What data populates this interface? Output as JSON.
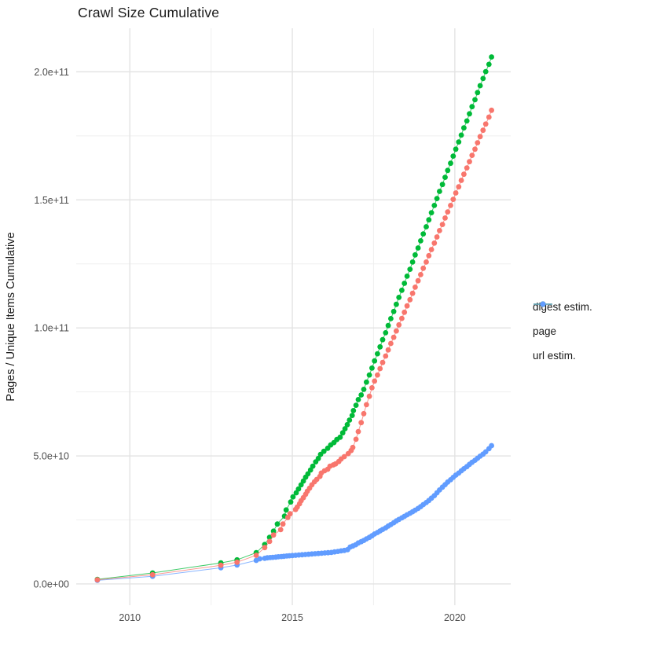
{
  "chart": {
    "title": "Crawl Size Cumulative",
    "y_axis_label": "Pages / Unique Items Cumulative"
  },
  "chart_data": {
    "type": "line",
    "title": "Crawl Size Cumulative",
    "xlabel": "",
    "ylabel": "Pages / Unique Items Cumulative",
    "grid": true,
    "legend_position": "right",
    "x_axis": {
      "range": [
        2008.35,
        2021.72
      ],
      "ticks": [
        2010,
        2015,
        2020
      ],
      "tick_labels": [
        "2010",
        "2015",
        "2020"
      ],
      "minor_ticks": [
        2012.5,
        2017.5
      ]
    },
    "y_axis": {
      "unit_note": "values stored in billions; axis shown in scientific notation",
      "value_scale": 1000000000.0,
      "range_billions": [
        -8.3,
        217
      ],
      "ticks_billions": [
        0,
        50,
        100,
        150,
        200
      ],
      "tick_labels": [
        "0.0e+00",
        "5.0e+10",
        "1.0e+11",
        "1.5e+11",
        "2.0e+11"
      ],
      "minor_ticks_billions": [
        25,
        75,
        125,
        175
      ]
    },
    "draw_order": [
      "url estim.",
      "page",
      "digest estim."
    ],
    "series": [
      {
        "name": "digest estim.",
        "key": "digest-estim",
        "color": "#F8766D",
        "points_year_billions": [
          [
            2009.0,
            1.6
          ],
          [
            2010.7,
            3.6
          ],
          [
            2012.8,
            7.3
          ],
          [
            2013.3,
            8.5
          ],
          [
            2013.89,
            11.2
          ],
          [
            2014.15,
            14.2
          ],
          [
            2014.3,
            16.6
          ],
          [
            2014.42,
            19.1
          ],
          [
            2014.64,
            21.2
          ],
          [
            2014.71,
            23.4
          ],
          [
            2014.86,
            26.0
          ],
          [
            2014.93,
            27.4
          ],
          [
            2015.1,
            29.1
          ],
          [
            2015.15,
            30.0
          ],
          [
            2015.22,
            31.3
          ],
          [
            2015.27,
            32.5
          ],
          [
            2015.34,
            33.7
          ],
          [
            2015.41,
            35.0
          ],
          [
            2015.46,
            36.2
          ],
          [
            2015.53,
            37.4
          ],
          [
            2015.6,
            38.7
          ],
          [
            2015.68,
            39.9
          ],
          [
            2015.75,
            40.8
          ],
          [
            2015.85,
            42.0
          ],
          [
            2015.89,
            43.3
          ],
          [
            2015.99,
            44.2
          ],
          [
            2016.09,
            44.8
          ],
          [
            2016.16,
            46.0
          ],
          [
            2016.26,
            46.5
          ],
          [
            2016.33,
            46.9
          ],
          [
            2016.43,
            47.8
          ],
          [
            2016.5,
            48.8
          ],
          [
            2016.6,
            49.7
          ],
          [
            2016.72,
            50.9
          ],
          [
            2016.81,
            52.1
          ],
          [
            2016.86,
            53.3
          ],
          [
            2016.96,
            56.5
          ],
          [
            2017.03,
            59.5
          ],
          [
            2017.12,
            63.0
          ],
          [
            2017.2,
            66.5
          ],
          [
            2017.28,
            70.0
          ],
          [
            2017.37,
            73.3
          ],
          [
            2017.45,
            76.6
          ],
          [
            2017.53,
            79.2
          ],
          [
            2017.62,
            81.6
          ],
          [
            2017.7,
            84.1
          ],
          [
            2017.78,
            86.5
          ],
          [
            2017.87,
            89.0
          ],
          [
            2017.95,
            91.4
          ],
          [
            2018.03,
            93.9
          ],
          [
            2018.12,
            96.3
          ],
          [
            2018.2,
            98.8
          ],
          [
            2018.28,
            101.2
          ],
          [
            2018.37,
            103.7
          ],
          [
            2018.45,
            106.1
          ],
          [
            2018.53,
            108.6
          ],
          [
            2018.62,
            111.0
          ],
          [
            2018.7,
            113.5
          ],
          [
            2018.78,
            115.9
          ],
          [
            2018.87,
            118.4
          ],
          [
            2018.95,
            120.8
          ],
          [
            2019.03,
            123.3
          ],
          [
            2019.12,
            125.7
          ],
          [
            2019.2,
            128.2
          ],
          [
            2019.28,
            130.6
          ],
          [
            2019.37,
            133.1
          ],
          [
            2019.45,
            135.5
          ],
          [
            2019.53,
            138.0
          ],
          [
            2019.62,
            140.4
          ],
          [
            2019.7,
            142.9
          ],
          [
            2019.78,
            145.3
          ],
          [
            2019.87,
            147.8
          ],
          [
            2019.95,
            150.2
          ],
          [
            2020.03,
            152.7
          ],
          [
            2020.12,
            155.1
          ],
          [
            2020.2,
            157.6
          ],
          [
            2020.28,
            160.0
          ],
          [
            2020.37,
            162.5
          ],
          [
            2020.45,
            164.9
          ],
          [
            2020.53,
            167.4
          ],
          [
            2020.62,
            169.8
          ],
          [
            2020.7,
            172.3
          ],
          [
            2020.78,
            174.7
          ],
          [
            2020.87,
            177.2
          ],
          [
            2020.95,
            179.6
          ],
          [
            2021.05,
            182.3
          ],
          [
            2021.13,
            185.0
          ]
        ]
      },
      {
        "name": "page",
        "key": "page",
        "color": "#00BA38",
        "points_year_billions": [
          [
            2009.0,
            1.8
          ],
          [
            2010.7,
            4.3
          ],
          [
            2012.8,
            8.2
          ],
          [
            2013.3,
            9.4
          ],
          [
            2013.89,
            12.2
          ],
          [
            2014.15,
            15.4
          ],
          [
            2014.3,
            18.2
          ],
          [
            2014.42,
            20.6
          ],
          [
            2014.54,
            23.4
          ],
          [
            2014.76,
            26.5
          ],
          [
            2014.81,
            28.9
          ],
          [
            2014.95,
            32.0
          ],
          [
            2015.02,
            34.0
          ],
          [
            2015.12,
            35.6
          ],
          [
            2015.19,
            37.1
          ],
          [
            2015.27,
            38.7
          ],
          [
            2015.34,
            40.2
          ],
          [
            2015.41,
            41.7
          ],
          [
            2015.48,
            43.0
          ],
          [
            2015.56,
            44.5
          ],
          [
            2015.63,
            46.0
          ],
          [
            2015.72,
            47.7
          ],
          [
            2015.8,
            49.0
          ],
          [
            2015.87,
            50.6
          ],
          [
            2015.97,
            51.8
          ],
          [
            2016.09,
            53.0
          ],
          [
            2016.18,
            54.3
          ],
          [
            2016.28,
            55.2
          ],
          [
            2016.37,
            56.4
          ],
          [
            2016.47,
            57.3
          ],
          [
            2016.55,
            59.0
          ],
          [
            2016.62,
            60.6
          ],
          [
            2016.69,
            62.2
          ],
          [
            2016.76,
            64.0
          ],
          [
            2016.84,
            65.8
          ],
          [
            2016.88,
            67.7
          ],
          [
            2016.96,
            69.8
          ],
          [
            2017.03,
            72.0
          ],
          [
            2017.12,
            73.8
          ],
          [
            2017.2,
            76.0
          ],
          [
            2017.28,
            78.8
          ],
          [
            2017.37,
            81.6
          ],
          [
            2017.45,
            84.3
          ],
          [
            2017.53,
            87.1
          ],
          [
            2017.62,
            89.9
          ],
          [
            2017.7,
            92.6
          ],
          [
            2017.78,
            95.4
          ],
          [
            2017.87,
            98.1
          ],
          [
            2017.95,
            100.9
          ],
          [
            2018.03,
            103.6
          ],
          [
            2018.12,
            106.4
          ],
          [
            2018.2,
            109.2
          ],
          [
            2018.28,
            111.9
          ],
          [
            2018.37,
            114.7
          ],
          [
            2018.45,
            117.4
          ],
          [
            2018.53,
            120.2
          ],
          [
            2018.62,
            122.9
          ],
          [
            2018.7,
            125.7
          ],
          [
            2018.78,
            128.5
          ],
          [
            2018.87,
            131.2
          ],
          [
            2018.95,
            134.0
          ],
          [
            2019.03,
            136.7
          ],
          [
            2019.12,
            139.5
          ],
          [
            2019.2,
            142.2
          ],
          [
            2019.28,
            145.0
          ],
          [
            2019.37,
            147.8
          ],
          [
            2019.45,
            150.5
          ],
          [
            2019.53,
            153.3
          ],
          [
            2019.62,
            156.0
          ],
          [
            2019.7,
            158.8
          ],
          [
            2019.78,
            161.5
          ],
          [
            2019.87,
            164.3
          ],
          [
            2019.95,
            167.1
          ],
          [
            2020.03,
            169.8
          ],
          [
            2020.12,
            172.6
          ],
          [
            2020.2,
            175.3
          ],
          [
            2020.28,
            178.1
          ],
          [
            2020.37,
            180.8
          ],
          [
            2020.45,
            183.6
          ],
          [
            2020.53,
            186.4
          ],
          [
            2020.62,
            189.1
          ],
          [
            2020.7,
            191.9
          ],
          [
            2020.78,
            194.6
          ],
          [
            2020.87,
            197.4
          ],
          [
            2020.95,
            200.1
          ],
          [
            2021.05,
            202.9
          ],
          [
            2021.13,
            205.8
          ]
        ]
      },
      {
        "name": "url estim.",
        "key": "url-estim",
        "color": "#619CFF",
        "points_year_billions": [
          [
            2009.0,
            1.4
          ],
          [
            2010.7,
            3.0
          ],
          [
            2012.8,
            6.3
          ],
          [
            2013.3,
            7.4
          ],
          [
            2013.89,
            9.2
          ],
          [
            2014.0,
            9.8
          ],
          [
            2014.15,
            10.0
          ],
          [
            2014.23,
            10.2
          ],
          [
            2014.32,
            10.3
          ],
          [
            2014.4,
            10.4
          ],
          [
            2014.49,
            10.5
          ],
          [
            2014.57,
            10.6
          ],
          [
            2014.66,
            10.7
          ],
          [
            2014.74,
            10.8
          ],
          [
            2014.83,
            10.9
          ],
          [
            2014.91,
            11.0
          ],
          [
            2015.0,
            11.1
          ],
          [
            2015.1,
            11.2
          ],
          [
            2015.2,
            11.3
          ],
          [
            2015.3,
            11.4
          ],
          [
            2015.4,
            11.5
          ],
          [
            2015.5,
            11.6
          ],
          [
            2015.6,
            11.7
          ],
          [
            2015.7,
            11.8
          ],
          [
            2015.8,
            11.9
          ],
          [
            2015.9,
            12.0
          ],
          [
            2016.0,
            12.1
          ],
          [
            2016.1,
            12.2
          ],
          [
            2016.2,
            12.3
          ],
          [
            2016.3,
            12.5
          ],
          [
            2016.4,
            12.7
          ],
          [
            2016.5,
            12.9
          ],
          [
            2016.6,
            13.1
          ],
          [
            2016.7,
            13.4
          ],
          [
            2016.78,
            14.4
          ],
          [
            2016.86,
            14.8
          ],
          [
            2016.95,
            15.3
          ],
          [
            2017.03,
            16.0
          ],
          [
            2017.12,
            16.5
          ],
          [
            2017.2,
            17.0
          ],
          [
            2017.28,
            17.6
          ],
          [
            2017.37,
            18.2
          ],
          [
            2017.45,
            18.8
          ],
          [
            2017.53,
            19.5
          ],
          [
            2017.62,
            20.1
          ],
          [
            2017.7,
            20.7
          ],
          [
            2017.78,
            21.3
          ],
          [
            2017.87,
            21.9
          ],
          [
            2017.95,
            22.6
          ],
          [
            2018.03,
            23.2
          ],
          [
            2018.12,
            23.9
          ],
          [
            2018.2,
            24.6
          ],
          [
            2018.28,
            25.2
          ],
          [
            2018.37,
            25.8
          ],
          [
            2018.45,
            26.4
          ],
          [
            2018.53,
            27.0
          ],
          [
            2018.62,
            27.6
          ],
          [
            2018.7,
            28.2
          ],
          [
            2018.78,
            28.8
          ],
          [
            2018.87,
            29.5
          ],
          [
            2018.95,
            30.2
          ],
          [
            2019.03,
            31.0
          ],
          [
            2019.12,
            31.8
          ],
          [
            2019.2,
            32.6
          ],
          [
            2019.28,
            33.5
          ],
          [
            2019.37,
            34.5
          ],
          [
            2019.45,
            35.6
          ],
          [
            2019.53,
            36.7
          ],
          [
            2019.62,
            37.8
          ],
          [
            2019.7,
            38.8
          ],
          [
            2019.78,
            39.8
          ],
          [
            2019.87,
            40.7
          ],
          [
            2019.95,
            41.6
          ],
          [
            2020.03,
            42.5
          ],
          [
            2020.12,
            43.3
          ],
          [
            2020.2,
            44.2
          ],
          [
            2020.28,
            45.0
          ],
          [
            2020.37,
            45.8
          ],
          [
            2020.45,
            46.7
          ],
          [
            2020.53,
            47.5
          ],
          [
            2020.62,
            48.3
          ],
          [
            2020.7,
            49.1
          ],
          [
            2020.78,
            49.9
          ],
          [
            2020.87,
            50.7
          ],
          [
            2020.95,
            51.6
          ],
          [
            2021.05,
            52.8
          ],
          [
            2021.13,
            54.0
          ]
        ]
      }
    ],
    "style": {
      "background": "#FFFFFF",
      "grid_major_color": "#E3E3E3",
      "grid_minor_color": "#EFEFEF",
      "tick_label_color": "#4D4D4D",
      "text_color": "#1A1A1A",
      "point_radius": 3.4,
      "line_width": 1
    }
  }
}
